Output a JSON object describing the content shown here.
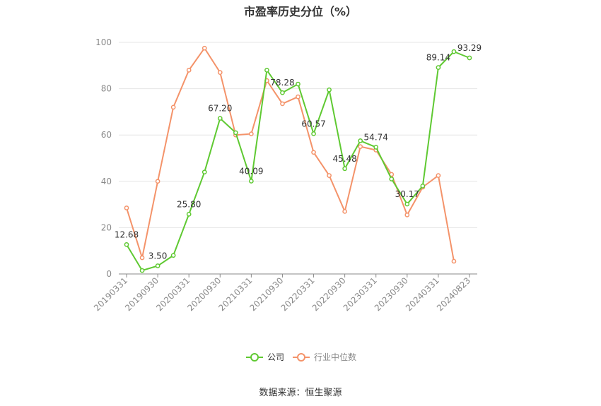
{
  "title": "市盈率历史分位（%）",
  "source": "数据来源：恒生聚源",
  "colors": {
    "company": "#5fc932",
    "industry": "#f4936a",
    "grid": "#e6e6e6",
    "axis": "#8a8a8a"
  },
  "chart_data": {
    "type": "line",
    "title": "市盈率历史分位（%）",
    "ylim": [
      0,
      100
    ],
    "yticks": [
      0,
      20,
      40,
      60,
      80,
      100
    ],
    "grid": true,
    "legend_position": "bottom",
    "x_tick_labels": [
      "20190331",
      "20190930",
      "20200331",
      "20200930",
      "20210331",
      "20210930",
      "20220331",
      "20220930",
      "20230331",
      "20230930",
      "20240331",
      "20240823"
    ],
    "x": [
      "20190331",
      "20190630",
      "20190930",
      "20191231",
      "20200331",
      "20200630",
      "20200930",
      "20201231",
      "20210331",
      "20210630",
      "20210930",
      "20211231",
      "20220331",
      "20220630",
      "20220930",
      "20221231",
      "20230331",
      "20230630",
      "20230930",
      "20231231",
      "20240331",
      "20240630",
      "20240823"
    ],
    "series": [
      {
        "name": "公司",
        "values": [
          12.68,
          1.5,
          3.5,
          8.0,
          25.8,
          44.0,
          67.2,
          61.0,
          40.09,
          88.0,
          78.28,
          82.0,
          60.57,
          79.5,
          45.48,
          57.5,
          54.74,
          41.0,
          30.17,
          38.0,
          89.14,
          96.0,
          93.29
        ],
        "labels": [
          "12.68",
          null,
          "3.50",
          null,
          "25.80",
          null,
          "67.20",
          null,
          "40.09",
          null,
          "78.28",
          null,
          "60.57",
          null,
          "45.48",
          null,
          "54.74",
          null,
          "30.17",
          null,
          "89.14",
          null,
          "93.29"
        ]
      },
      {
        "name": "行业中位数",
        "values": [
          28.5,
          7.0,
          40.0,
          72.0,
          88.0,
          97.5,
          87.0,
          60.0,
          60.5,
          83.5,
          73.5,
          76.5,
          52.5,
          42.5,
          27.0,
          55.0,
          53.5,
          43.0,
          25.5,
          37.5,
          42.5,
          5.5,
          null
        ]
      }
    ]
  }
}
